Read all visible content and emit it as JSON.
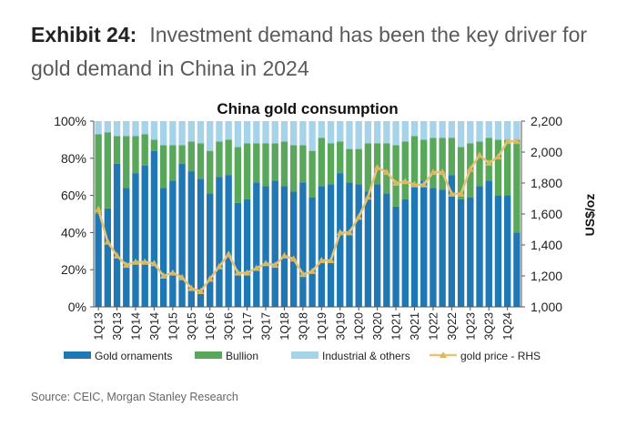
{
  "header": {
    "exhibit_number": "Exhibit 24:",
    "exhibit_title": "Investment demand has been the key driver for gold demand in China in 2024"
  },
  "source": "Source: CEIC, Morgan Stanley Research",
  "colors": {
    "gold_ornaments": "#1f78b4",
    "bullion": "#58a75a",
    "industrial_others": "#a7d3ea",
    "gold_price": "#e7c478",
    "gold_price_marker": "#d9b861"
  },
  "chart_data": {
    "type": "bar",
    "title": "China gold consumption",
    "ylabel_right": "US$/oz",
    "left_axis": {
      "ylim": [
        0,
        100
      ],
      "ticks": [
        "0%",
        "20%",
        "40%",
        "60%",
        "80%",
        "100%"
      ]
    },
    "right_axis": {
      "ylim": [
        1000,
        2200
      ],
      "ticks": [
        "1,000",
        "1,200",
        "1,400",
        "1,600",
        "1,800",
        "2,000",
        "2,200"
      ]
    },
    "grid": false,
    "legend_position": "bottom",
    "categories": [
      "1Q13",
      "2Q13",
      "3Q13",
      "4Q13",
      "1Q14",
      "2Q14",
      "3Q14",
      "4Q14",
      "1Q15",
      "2Q15",
      "3Q15",
      "4Q15",
      "1Q16",
      "2Q16",
      "3Q16",
      "4Q16",
      "1Q17",
      "2Q17",
      "3Q17",
      "4Q17",
      "1Q18",
      "2Q18",
      "3Q18",
      "4Q18",
      "1Q19",
      "2Q19",
      "3Q19",
      "4Q19",
      "1Q20",
      "2Q20",
      "3Q20",
      "4Q20",
      "1Q21",
      "2Q21",
      "3Q21",
      "4Q21",
      "1Q22",
      "2Q22",
      "3Q22",
      "4Q22",
      "1Q23",
      "2Q23",
      "3Q23",
      "4Q23",
      "1Q24",
      "2Q24"
    ],
    "tick_labels": [
      "1Q13",
      "3Q13",
      "1Q14",
      "3Q14",
      "1Q15",
      "3Q15",
      "1Q16",
      "3Q16",
      "1Q17",
      "3Q17",
      "1Q18",
      "3Q18",
      "1Q19",
      "3Q19",
      "1Q20",
      "3Q20",
      "1Q21",
      "3Q21",
      "1Q22",
      "3Q22",
      "1Q23",
      "3Q23",
      "1Q24"
    ],
    "series": [
      {
        "name": "Gold ornaments",
        "axis": "left",
        "kind": "stacked-bar",
        "values": [
          50,
          53,
          77,
          64,
          72,
          76,
          84,
          64,
          68,
          77,
          73,
          69,
          61,
          70,
          71,
          56,
          58,
          67,
          65,
          68,
          65,
          62,
          67,
          59,
          65,
          66,
          72,
          67,
          66,
          62,
          66,
          61,
          54,
          58,
          65,
          68,
          64,
          63,
          71,
          58,
          59,
          65,
          68,
          60,
          60,
          40
        ]
      },
      {
        "name": "Bullion",
        "axis": "left",
        "kind": "stacked-bar",
        "values": [
          43,
          41,
          15,
          28,
          20,
          17,
          6,
          23,
          19,
          10,
          16,
          19,
          23,
          19,
          19,
          30,
          30,
          21,
          23,
          20,
          24,
          25,
          20,
          25,
          26,
          22,
          17,
          18,
          19,
          26,
          22,
          27,
          33,
          31,
          27,
          22,
          27,
          28,
          20,
          28,
          29,
          24,
          23,
          30,
          30,
          50
        ]
      },
      {
        "name": "Industrial & others",
        "axis": "left",
        "kind": "stacked-bar",
        "values": [
          7,
          6,
          8,
          8,
          8,
          7,
          10,
          13,
          13,
          13,
          11,
          12,
          16,
          11,
          10,
          14,
          12,
          12,
          12,
          12,
          11,
          13,
          13,
          16,
          9,
          12,
          11,
          15,
          15,
          12,
          12,
          12,
          13,
          11,
          8,
          10,
          9,
          9,
          9,
          14,
          12,
          11,
          9,
          10,
          10,
          10
        ]
      },
      {
        "name": "gold price - RHS",
        "axis": "right",
        "kind": "line",
        "values": [
          1630,
          1420,
          1330,
          1270,
          1290,
          1290,
          1280,
          1200,
          1220,
          1190,
          1120,
          1100,
          1180,
          1260,
          1340,
          1220,
          1220,
          1250,
          1280,
          1270,
          1330,
          1310,
          1210,
          1230,
          1300,
          1300,
          1480,
          1480,
          1580,
          1710,
          1900,
          1870,
          1800,
          1810,
          1790,
          1790,
          1870,
          1870,
          1730,
          1730,
          1890,
          1980,
          1930,
          1970,
          2070,
          2070
        ]
      }
    ]
  }
}
